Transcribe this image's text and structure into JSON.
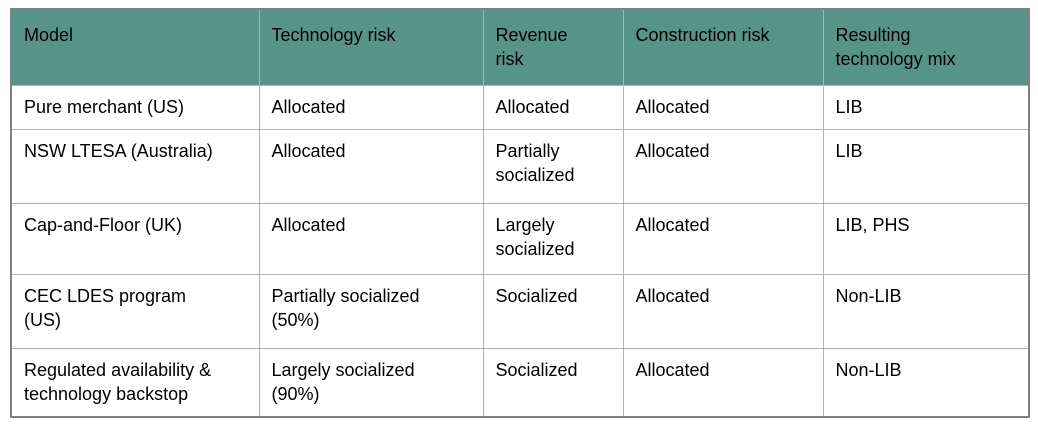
{
  "table": {
    "columns": [
      "Model",
      "Technology risk",
      "Revenue\nrisk",
      "Construction risk",
      "Resulting\ntechnology mix"
    ],
    "rows": [
      {
        "cells": [
          "Pure merchant (US)",
          "Allocated",
          "Allocated",
          "Allocated",
          "LIB"
        ]
      },
      {
        "cells": [
          "NSW LTESA (Australia)",
          "Allocated",
          "Partially\nsocialized",
          "Allocated",
          "LIB"
        ]
      },
      {
        "cells": [
          "Cap-and-Floor (UK)",
          "Allocated",
          "Largely\nsocialized",
          "Allocated",
          "LIB, PHS"
        ]
      },
      {
        "cells": [
          "CEC LDES program\n(US)",
          "Partially socialized\n(50%)",
          "Socialized",
          "Allocated",
          "Non-LIB"
        ]
      },
      {
        "cells": [
          "Regulated availability &\ntechnology backstop",
          "Largely socialized\n(90%)",
          "Socialized",
          "Allocated",
          "Non-LIB"
        ]
      }
    ],
    "colors": {
      "header_bg": "#579389",
      "header_text": "#000000",
      "body_bg": "#ffffff",
      "body_text": "#000000",
      "inner_border": "#b2b2b2",
      "outer_border": "#7f7f7f"
    }
  }
}
